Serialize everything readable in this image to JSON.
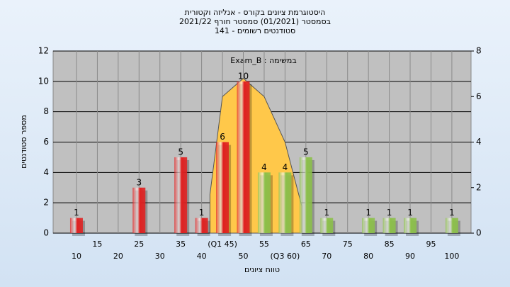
{
  "chart_data": {
    "type": "bar",
    "title": [
      "היסטוגרמת ציונים בקורס - אנליזה וקטורית",
      "בסמסטר (01/2021) סמסטר חורף 2021/22",
      "סטודנטים רשומים - 141"
    ],
    "subtitle": "במשימה : Exam_B",
    "xlabel": "טווח ציונים",
    "ylabel": "מספר סטודנטים",
    "x": [
      10,
      15,
      20,
      25,
      30,
      35,
      40,
      45,
      50,
      55,
      60,
      65,
      70,
      75,
      80,
      85,
      90,
      95,
      100
    ],
    "values": [
      1,
      0,
      0,
      3,
      0,
      5,
      1,
      6,
      10,
      4,
      4,
      5,
      1,
      0,
      1,
      1,
      1,
      0,
      1
    ],
    "colors": [
      "#e02020",
      "#e02020",
      "#e02020",
      "#e02020",
      "#e02020",
      "#e02020",
      "#e02020",
      "#e02020",
      "#e02020",
      "#8cc04a",
      "#8cc04a",
      "#8cc04a",
      "#8cc04a",
      "#8cc04a",
      "#8cc04a",
      "#8cc04a",
      "#8cc04a",
      "#8cc04a",
      "#8cc04a"
    ],
    "xlim": [
      4.4,
      104.6
    ],
    "xticks": [
      10,
      15,
      20,
      25,
      30,
      35,
      40,
      {
        "value": 45,
        "label": "(Q1 45)"
      },
      50,
      55,
      {
        "value": 60,
        "label": "(Q3 60)"
      },
      65,
      70,
      75,
      80,
      85,
      90,
      95,
      100
    ],
    "ylim": [
      0,
      12
    ],
    "yticks": [
      0,
      2,
      4,
      6,
      8,
      10,
      12
    ],
    "y2lim": [
      0,
      8
    ],
    "y2ticks": [
      0,
      2,
      4,
      6,
      8
    ],
    "overlay": {
      "color": "#ffc84a",
      "x": [
        42,
        45,
        50,
        55,
        60,
        64
      ],
      "values": [
        1.7,
        6.0,
        6.8,
        6.0,
        4.0,
        1.2
      ],
      "axis": "y2"
    },
    "grid": true
  }
}
